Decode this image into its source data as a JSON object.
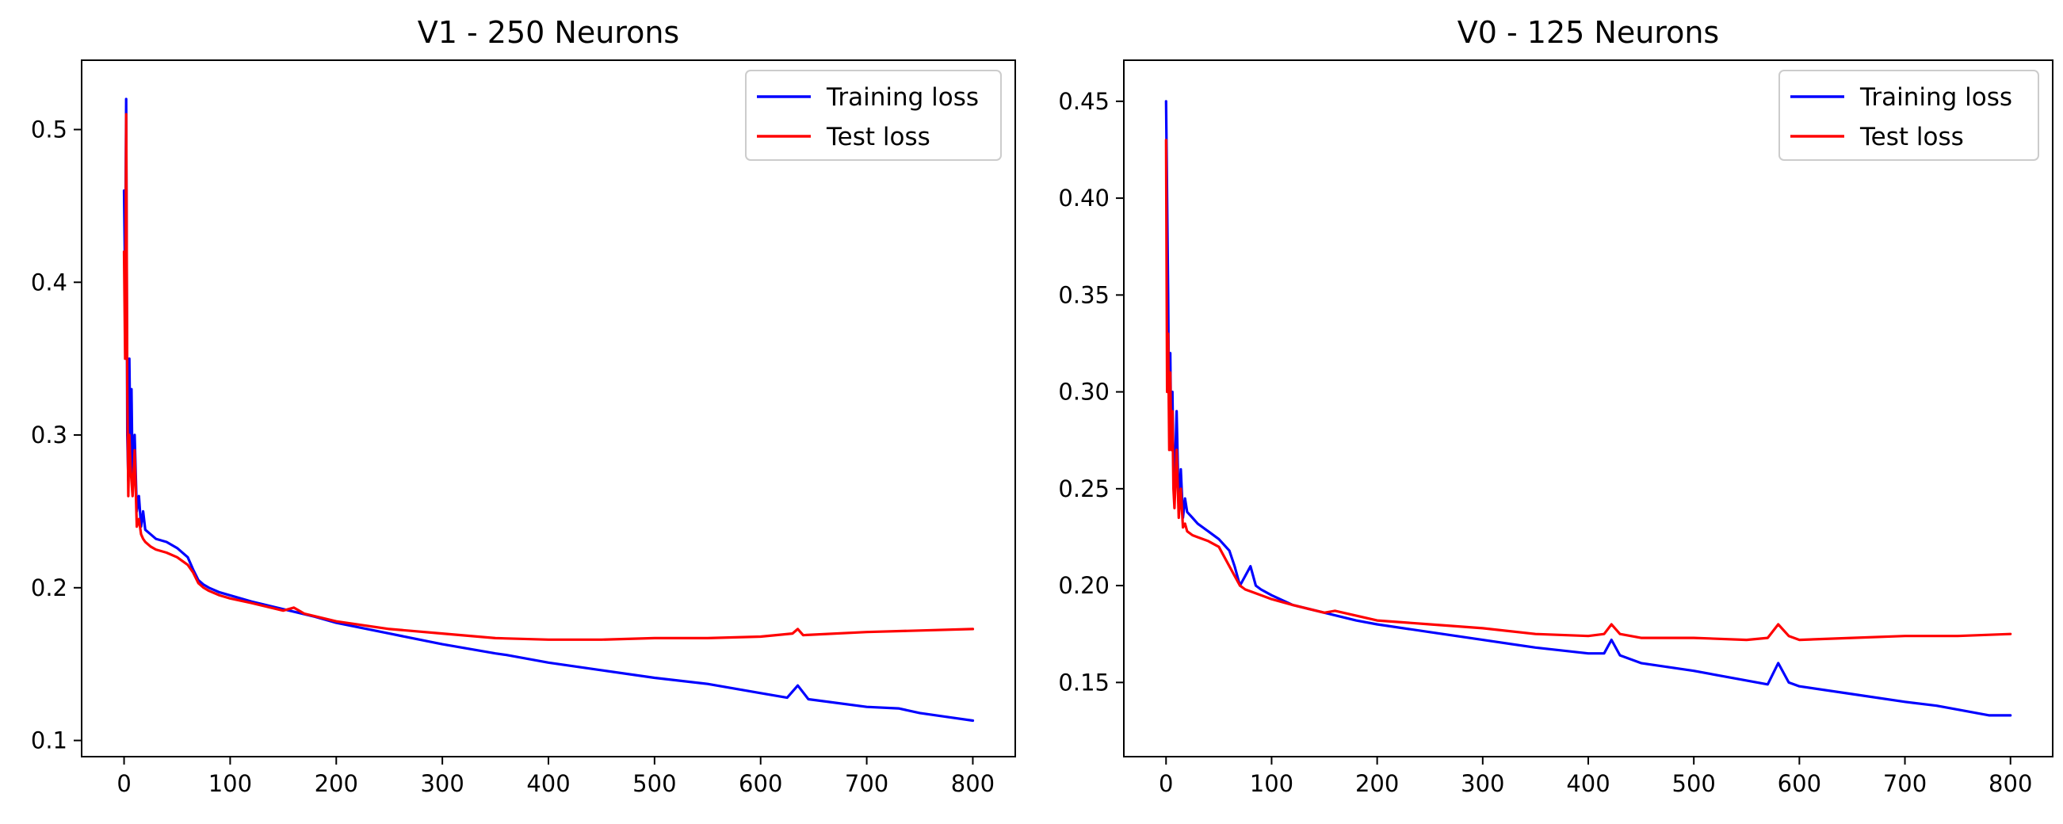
{
  "colors": {
    "training": "#0000ff",
    "test": "#ff0000"
  },
  "chart_data": [
    {
      "type": "line",
      "title": "V1 - 250 Neurons",
      "xlabel": "",
      "ylabel": "",
      "xlim": [
        -40,
        840
      ],
      "ylim": [
        0.0894,
        0.5454
      ],
      "xticks": [
        0,
        100,
        200,
        300,
        400,
        500,
        600,
        700,
        800
      ],
      "xtick_labels": [
        "0",
        "100",
        "200",
        "300",
        "400",
        "500",
        "600",
        "700",
        "800"
      ],
      "yticks": [
        0.1,
        0.2,
        0.3,
        0.4,
        0.5
      ],
      "ytick_labels": [
        "0.1",
        "0.2",
        "0.3",
        "0.4",
        "0.5"
      ],
      "grid": false,
      "legend": "upper right",
      "series": [
        {
          "name": "Training loss",
          "color": "#0000ff",
          "x": [
            0,
            1,
            2,
            3,
            4,
            5,
            6,
            7,
            8,
            10,
            12,
            14,
            16,
            18,
            20,
            25,
            30,
            40,
            50,
            60,
            65,
            70,
            75,
            80,
            90,
            100,
            120,
            150,
            180,
            200,
            250,
            300,
            350,
            360,
            400,
            450,
            500,
            550,
            600,
            625,
            635,
            645,
            700,
            730,
            750,
            780,
            800
          ],
          "y": [
            0.46,
            0.4,
            0.52,
            0.3,
            0.27,
            0.35,
            0.29,
            0.33,
            0.27,
            0.3,
            0.25,
            0.26,
            0.24,
            0.25,
            0.238,
            0.235,
            0.232,
            0.23,
            0.226,
            0.22,
            0.212,
            0.205,
            0.202,
            0.2,
            0.197,
            0.195,
            0.191,
            0.186,
            0.181,
            0.177,
            0.17,
            0.163,
            0.157,
            0.156,
            0.151,
            0.146,
            0.141,
            0.137,
            0.131,
            0.128,
            0.136,
            0.127,
            0.122,
            0.121,
            0.118,
            0.115,
            0.113
          ]
        },
        {
          "name": "Test loss",
          "color": "#ff0000",
          "x": [
            0,
            1,
            2,
            3,
            4,
            5,
            6,
            7,
            8,
            10,
            12,
            14,
            16,
            18,
            20,
            25,
            30,
            40,
            50,
            60,
            65,
            70,
            75,
            80,
            90,
            100,
            120,
            150,
            160,
            170,
            200,
            250,
            300,
            350,
            400,
            450,
            500,
            550,
            600,
            630,
            635,
            640,
            700,
            750,
            800
          ],
          "y": [
            0.42,
            0.35,
            0.51,
            0.33,
            0.26,
            0.3,
            0.28,
            0.27,
            0.26,
            0.29,
            0.24,
            0.245,
            0.235,
            0.232,
            0.23,
            0.227,
            0.225,
            0.223,
            0.22,
            0.215,
            0.21,
            0.203,
            0.2,
            0.198,
            0.195,
            0.193,
            0.19,
            0.185,
            0.187,
            0.183,
            0.178,
            0.173,
            0.17,
            0.167,
            0.166,
            0.166,
            0.167,
            0.167,
            0.168,
            0.17,
            0.173,
            0.169,
            0.171,
            0.172,
            0.173
          ]
        }
      ]
    },
    {
      "type": "line",
      "title": "V0 - 125 Neurons",
      "xlabel": "",
      "ylabel": "",
      "xlim": [
        -40,
        840
      ],
      "ylim": [
        0.1117,
        0.4712
      ],
      "xticks": [
        0,
        100,
        200,
        300,
        400,
        500,
        600,
        700,
        800
      ],
      "xtick_labels": [
        "0",
        "100",
        "200",
        "300",
        "400",
        "500",
        "600",
        "700",
        "800"
      ],
      "yticks": [
        0.15,
        0.2,
        0.25,
        0.3,
        0.35,
        0.4,
        0.45
      ],
      "ytick_labels": [
        "0.15",
        "0.20",
        "0.25",
        "0.30",
        "0.35",
        "0.40",
        "0.45"
      ],
      "grid": false,
      "legend": "upper right",
      "series": [
        {
          "name": "Training loss",
          "color": "#0000ff",
          "x": [
            0,
            1,
            2,
            3,
            4,
            5,
            6,
            7,
            8,
            10,
            12,
            14,
            16,
            18,
            20,
            25,
            30,
            40,
            50,
            60,
            65,
            70,
            75,
            80,
            85,
            90,
            100,
            120,
            150,
            180,
            200,
            250,
            300,
            350,
            400,
            415,
            422,
            430,
            450,
            500,
            550,
            570,
            580,
            590,
            600,
            650,
            700,
            730,
            750,
            780,
            800
          ],
          "y": [
            0.45,
            0.4,
            0.35,
            0.28,
            0.32,
            0.27,
            0.3,
            0.26,
            0.25,
            0.29,
            0.24,
            0.26,
            0.235,
            0.245,
            0.238,
            0.235,
            0.232,
            0.228,
            0.224,
            0.218,
            0.21,
            0.2,
            0.205,
            0.21,
            0.2,
            0.198,
            0.195,
            0.19,
            0.186,
            0.182,
            0.18,
            0.176,
            0.172,
            0.168,
            0.165,
            0.165,
            0.172,
            0.164,
            0.16,
            0.156,
            0.151,
            0.149,
            0.16,
            0.15,
            0.148,
            0.144,
            0.14,
            0.138,
            0.136,
            0.133,
            0.133
          ]
        },
        {
          "name": "Test loss",
          "color": "#ff0000",
          "x": [
            0,
            1,
            2,
            3,
            4,
            5,
            6,
            7,
            8,
            10,
            12,
            14,
            16,
            18,
            20,
            25,
            30,
            40,
            50,
            60,
            65,
            70,
            75,
            80,
            90,
            100,
            120,
            150,
            160,
            200,
            250,
            300,
            350,
            400,
            415,
            422,
            430,
            450,
            500,
            550,
            570,
            580,
            590,
            600,
            650,
            700,
            750,
            800
          ],
          "y": [
            0.43,
            0.3,
            0.33,
            0.27,
            0.31,
            0.27,
            0.29,
            0.25,
            0.24,
            0.27,
            0.235,
            0.25,
            0.23,
            0.232,
            0.228,
            0.226,
            0.225,
            0.223,
            0.22,
            0.21,
            0.205,
            0.2,
            0.198,
            0.197,
            0.195,
            0.193,
            0.19,
            0.186,
            0.187,
            0.182,
            0.18,
            0.178,
            0.175,
            0.174,
            0.175,
            0.18,
            0.175,
            0.173,
            0.173,
            0.172,
            0.173,
            0.18,
            0.174,
            0.172,
            0.173,
            0.174,
            0.174,
            0.175
          ]
        }
      ]
    }
  ]
}
